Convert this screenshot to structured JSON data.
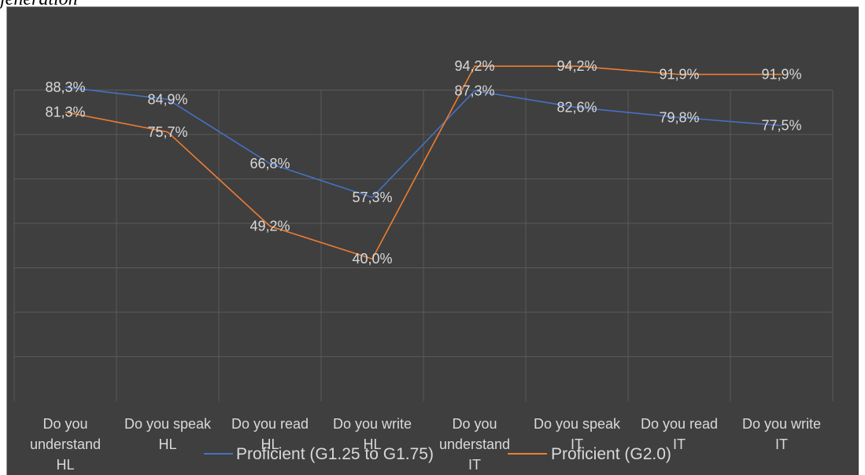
{
  "header_fragment": "jeneration",
  "chart_data": {
    "type": "line",
    "title": "",
    "xlabel": "",
    "ylabel": "",
    "ylim": [
      0,
      100
    ],
    "grid": true,
    "legend_position": "bottom",
    "categories": [
      "Do you understand HL",
      "Do you speak HL",
      "Do you read HL",
      "Do you write HL",
      "Do you understand IT",
      "Do you speak IT",
      "Do you read IT",
      "Do you write IT"
    ],
    "series": [
      {
        "name": "Proficient  (G1.25 to G1.75)",
        "color": "#4472c4",
        "values": [
          88.3,
          84.9,
          66.8,
          57.3,
          87.3,
          82.6,
          79.8,
          77.5
        ],
        "labels": [
          "88,3%",
          "84,9%",
          "66,8%",
          "57,3%",
          "87,3%",
          "82,6%",
          "79,8%",
          "77,5%"
        ]
      },
      {
        "name": "Proficient  (G2.0)",
        "color": "#ed7d31",
        "values": [
          81.3,
          75.7,
          49.2,
          40.0,
          94.2,
          94.2,
          91.9,
          91.9
        ],
        "labels": [
          "81,3%",
          "75,7%",
          "49,2%",
          "40,0%",
          "94,2%",
          "94,2%",
          "91,9%",
          "91,9%"
        ]
      }
    ]
  }
}
